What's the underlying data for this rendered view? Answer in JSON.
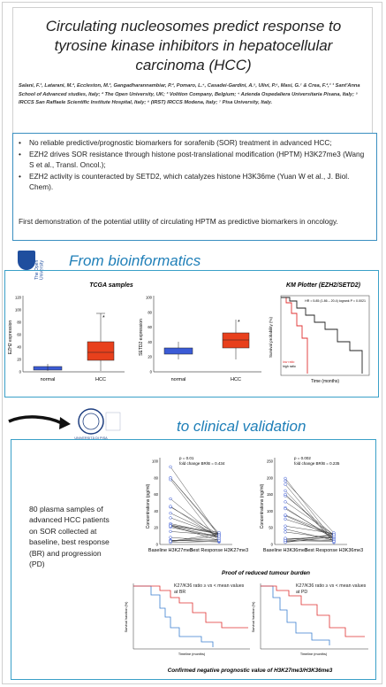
{
  "title": "Circulating nucleosomes predict response to tyrosine kinase inhibitors in hepatocellular carcinoma (HCC)",
  "authors": "Salani, F.¹, Latarani, M.², Eccleston, M.³, Gangadharannambiar, P.², Pomaro, L.⁴, Casadei-Gardini, A.⁵, Ulivi, P.⁶, Masi, G.⁷ & Crea, F.²,¹ ¹ Sant'Anna School of Advanced studies, Italy; ² The Open University, UK; ³ Volition Company, Belgium; ⁴ Azienda Ospedaliera Universitaria Pisana, Italy; ⁵ IRCCS San Raffaele Scientific Institute Hospital, Italy; ⁶ (IRST) IRCCS Modena, Italy; ⁷ Pisa University, Italy.",
  "intro": {
    "bullets": [
      "No reliable predictive/prognostic biomarkers for sorafenib (SOR) treatment  in advanced HCC;",
      "EZH2 drives SOR resistance through histone post-translational modification (HPTM) H3K27me3 (Wang S et al., Transl. Oncol.);",
      "EZH2 activity is counteracted by SETD2, which catalyzes histone H3K36me (Yuan W et al., J. Biol. Chem)."
    ],
    "conclusion": "First demonstration of the potential utility of circulating HPTM as predictive biomarkers in oncology."
  },
  "logo_text": "The Open University",
  "section1_title": "From bioinformatics",
  "tcga": {
    "title": "TCGA samples",
    "plots": [
      {
        "ylabel": "EZH2 expression",
        "groups": [
          "normal",
          "HCC"
        ],
        "yticks": [
          "0",
          "20",
          "40",
          "60",
          "80",
          "100",
          "120"
        ]
      },
      {
        "ylabel": "SETD2 expression",
        "groups": [
          "normal",
          "HCC"
        ],
        "yticks": [
          "0",
          "20",
          "40",
          "60",
          "80",
          "100"
        ]
      }
    ]
  },
  "km_plotter": {
    "title": "KM Plotter (EZH2/SETD2)",
    "xlabel": "Time (months)",
    "ylabel": "Survival probability (%)",
    "stats": "HR = 5.85 (1.86 – 20.4)  logrank P = 0.0021",
    "legend": [
      "low ratio",
      "high ratio"
    ],
    "xticks": [
      "0",
      "20",
      "40",
      "60"
    ]
  },
  "section2_title": "to clinical validation",
  "university_caption": "UNIVERSITÀ DI PISA",
  "plasma_text": "80 plasma samples of advanced HCC patients on SOR collected at baseline, best response (BR) and progression (PD)",
  "paired_plots": [
    {
      "stats1": "p = 0.01",
      "stats2": "fold change BR/B = 0.434",
      "ylabel": "Concentrations (pg/ml)",
      "yticks": [
        "0",
        "20",
        "40",
        "60",
        "80",
        "100"
      ],
      "x_labels": [
        "Baseline H3K27me3",
        "Best Response H3K27me3"
      ]
    },
    {
      "stats1": "p = 0.002",
      "stats2": "fold change BR/B = 0.235",
      "ylabel": "Concentrations (ng/ml)",
      "yticks": [
        "0",
        "50",
        "100",
        "150",
        "200",
        "250"
      ],
      "x_labels": [
        "Baseline H3K36me3",
        "Best Response H3K36me3"
      ]
    }
  ],
  "caption_reduced": "Proof of reduced tumour burden",
  "km_clinical": [
    {
      "legend": "K27/K36 ratio ≥ vs < mean values at BR",
      "ylabel": "Survival function (%)",
      "xlabel": "Timeline (months)"
    },
    {
      "legend": "K27/K36 ratio ≥ vs < mean values at PD",
      "ylabel": "Survival function (%)",
      "xlabel": "Timeline (months)"
    }
  ],
  "caption_confirmed": "Confirmed negative prognostic value of H3K27me3/H3K36me3",
  "colors": {
    "accent": "#1f7fb8",
    "border": "#3aa0c8",
    "hcc_box": "#e8401c",
    "normal_box": "#3b5bd6",
    "km_red": "#e03030",
    "km_blue": "#3b7fd0"
  }
}
